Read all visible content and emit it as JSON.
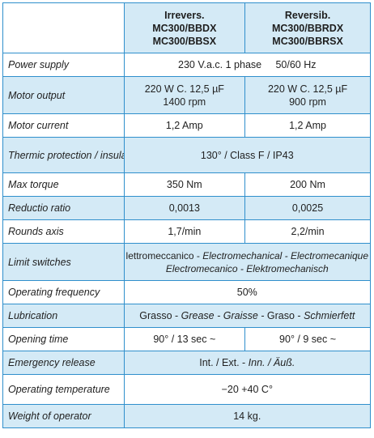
{
  "header": {
    "col_a": [
      "Irrevers.",
      "MC300/BBDX",
      "MC300/BBSX"
    ],
    "col_b": [
      "Reversib.",
      "MC300/BBRDX",
      "MC300/BBRSX"
    ]
  },
  "rows": {
    "power_supply": {
      "label": "Power supply",
      "value": "230 V.a.c. 1 phase     50/60 Hz"
    },
    "motor_output": {
      "label": "Motor output",
      "a": [
        "220 W C. 12,5 µF",
        "1400 rpm"
      ],
      "b": [
        "220 W C. 12,5 µF",
        "900 rpm"
      ]
    },
    "motor_current": {
      "label": "Motor current",
      "a": "1,2 Amp",
      "b": "1,2 Amp"
    },
    "thermic_protection": {
      "label": "Thermic protection / insulation",
      "value": "130° / Class F / IP43"
    },
    "max_torque": {
      "label": "Max torque",
      "a": "350 Nm",
      "b": "200 Nm"
    },
    "reductio_ratio": {
      "label": "Reductio ratio",
      "a": "0,0013",
      "b": "0,0025"
    },
    "rounds_axis": {
      "label": "Rounds axis",
      "a": "1,7/min",
      "b": "2,2/min"
    },
    "limit_switches": {
      "label": "Limit switches",
      "line1_plain": "Elettromeccanico - ",
      "line1_italic": "Electromechanical - Electromecanique",
      "line2_italic": "Electromecanico - Elektromechanisch"
    },
    "operating_frequency": {
      "label": "Operating frequency",
      "value": "50%"
    },
    "lubrication": {
      "label": "Lubrication",
      "plain1": "Grasso - ",
      "italic1": "Grease - Graisse - ",
      "plain2": "Graso - ",
      "italic2": "Schmierfett"
    },
    "opening_time": {
      "label": "Opening time",
      "a": "90° / 13 sec ~",
      "b": "90° / 9 sec ~"
    },
    "emergency_release": {
      "label": "Emergency release",
      "plain": "Int. / Ext. - ",
      "italic": "Inn. / Äuß."
    },
    "operating_temperature": {
      "label": "Operating temperature",
      "value": "−20 +40 C°"
    },
    "weight_of_operator": {
      "label": "Weight of operator",
      "value": "14 kg."
    }
  },
  "colors": {
    "accent_border": "#2f8fcc",
    "alt_row_fill": "#d4eaf6"
  }
}
